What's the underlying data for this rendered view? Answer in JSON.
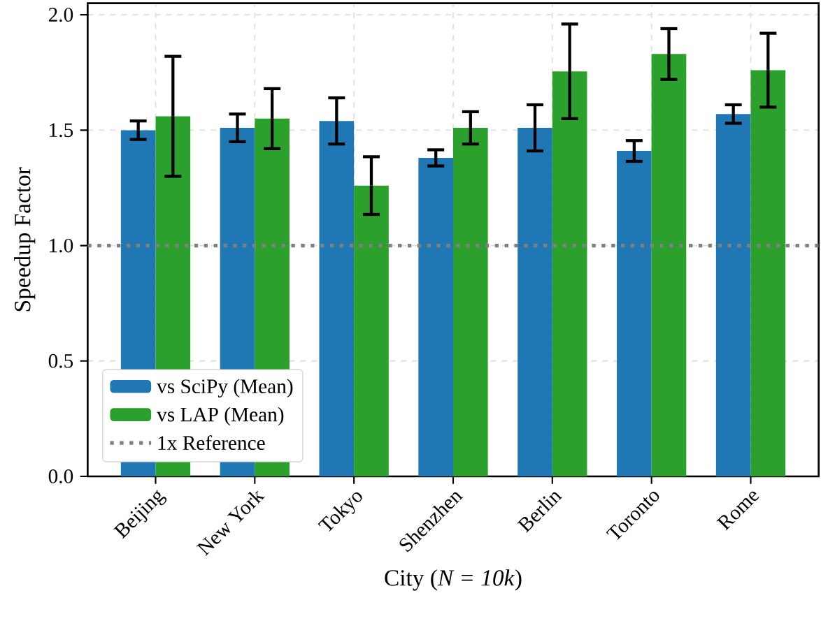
{
  "chart_data": {
    "type": "bar",
    "xlabel": "City (*N = 10k*)",
    "ylabel": "Speedup Factor",
    "categories": [
      "Beijing",
      "New York",
      "Tokyo",
      "Shenzhen",
      "Berlin",
      "Toronto",
      "Rome"
    ],
    "series": [
      {
        "name": "vs SciPy (Mean)",
        "color": "#1f77b4",
        "values": [
          1.5,
          1.51,
          1.54,
          1.38,
          1.51,
          1.41,
          1.57
        ],
        "errors": [
          0.04,
          0.06,
          0.1,
          0.035,
          0.1,
          0.045,
          0.04
        ]
      },
      {
        "name": "vs LAP (Mean)",
        "color": "#2ca02c",
        "values": [
          1.56,
          1.55,
          1.26,
          1.51,
          1.755,
          1.83,
          1.76
        ],
        "errors": [
          0.26,
          0.13,
          0.125,
          0.07,
          0.205,
          0.11,
          0.16
        ]
      }
    ],
    "ylim": [
      0,
      2.05
    ],
    "yticks": [
      {
        "value": 0,
        "label": "0.0"
      },
      {
        "value": 0.5,
        "label": "0.5"
      },
      {
        "value": 1,
        "label": "1.0"
      },
      {
        "value": 1.5,
        "label": "1.5"
      },
      {
        "value": 2,
        "label": "2.0"
      }
    ],
    "ref_lines": [
      {
        "axis": "y",
        "value": 1,
        "label": "1x Reference",
        "color": "#808080",
        "line_style": "dotted"
      }
    ],
    "grid": true,
    "legend": "bottom left"
  }
}
